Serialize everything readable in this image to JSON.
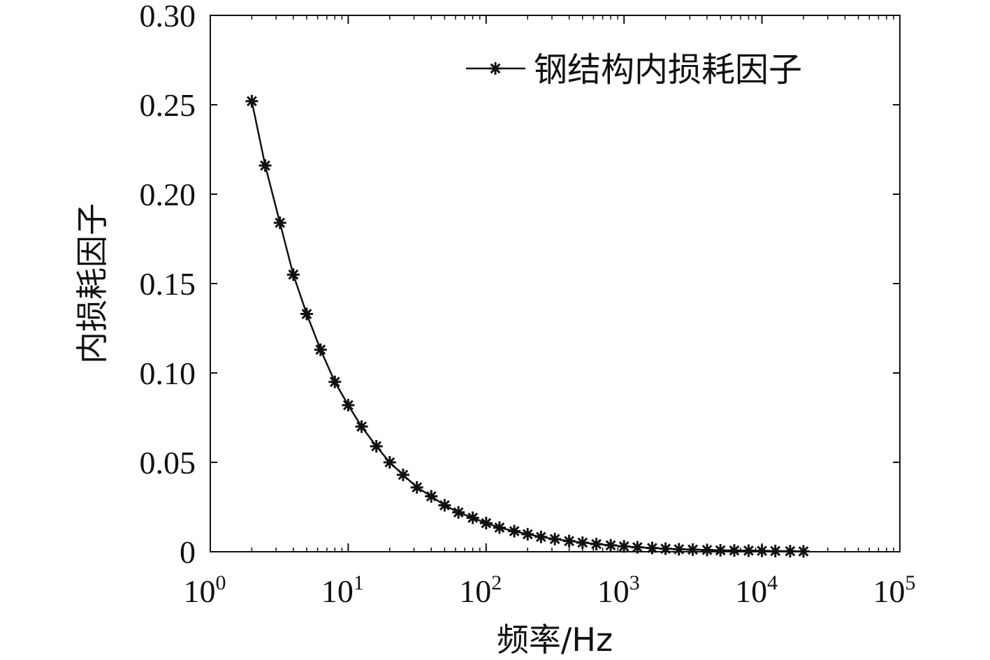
{
  "chart_data": {
    "type": "line",
    "xscale": "log",
    "xlim": [
      1,
      100000
    ],
    "ylim": [
      0,
      0.3
    ],
    "grid": false,
    "legend_placement": "top-right",
    "xlabel": "频率/Hz",
    "ylabel": "内损耗因子",
    "x_ticks": [
      {
        "base": "10",
        "exp": "0"
      },
      {
        "base": "10",
        "exp": "1"
      },
      {
        "base": "10",
        "exp": "2"
      },
      {
        "base": "10",
        "exp": "3"
      },
      {
        "base": "10",
        "exp": "4"
      },
      {
        "base": "10",
        "exp": "5"
      }
    ],
    "y_ticks": [
      "0",
      "0.05",
      "0.10",
      "0.15",
      "0.20",
      "0.25",
      "0.30"
    ],
    "series": [
      {
        "name": "钢结构内损耗因子",
        "color": "#111111",
        "marker": "asterisk",
        "x": [
          2,
          2.5,
          3.2,
          4,
          5,
          6.3,
          8,
          10,
          12.5,
          16,
          20,
          25,
          31.5,
          40,
          50,
          63,
          80,
          100,
          125,
          160,
          200,
          250,
          315,
          400,
          500,
          630,
          800,
          1000,
          1250,
          1600,
          2000,
          2500,
          3150,
          4000,
          5000,
          6300,
          8000,
          10000,
          12500,
          16000,
          20000
        ],
        "y": [
          0.252,
          0.216,
          0.184,
          0.155,
          0.133,
          0.113,
          0.095,
          0.082,
          0.07,
          0.059,
          0.05,
          0.043,
          0.036,
          0.031,
          0.026,
          0.022,
          0.019,
          0.016,
          0.0135,
          0.0115,
          0.0098,
          0.0083,
          0.0071,
          0.006,
          0.0051,
          0.0043,
          0.0036,
          0.003,
          0.0025,
          0.0021,
          0.0017,
          0.0014,
          0.0012,
          0.001,
          0.0008,
          0.0007,
          0.0006,
          0.0005,
          0.0004,
          0.0003,
          0.0002
        ]
      }
    ]
  }
}
